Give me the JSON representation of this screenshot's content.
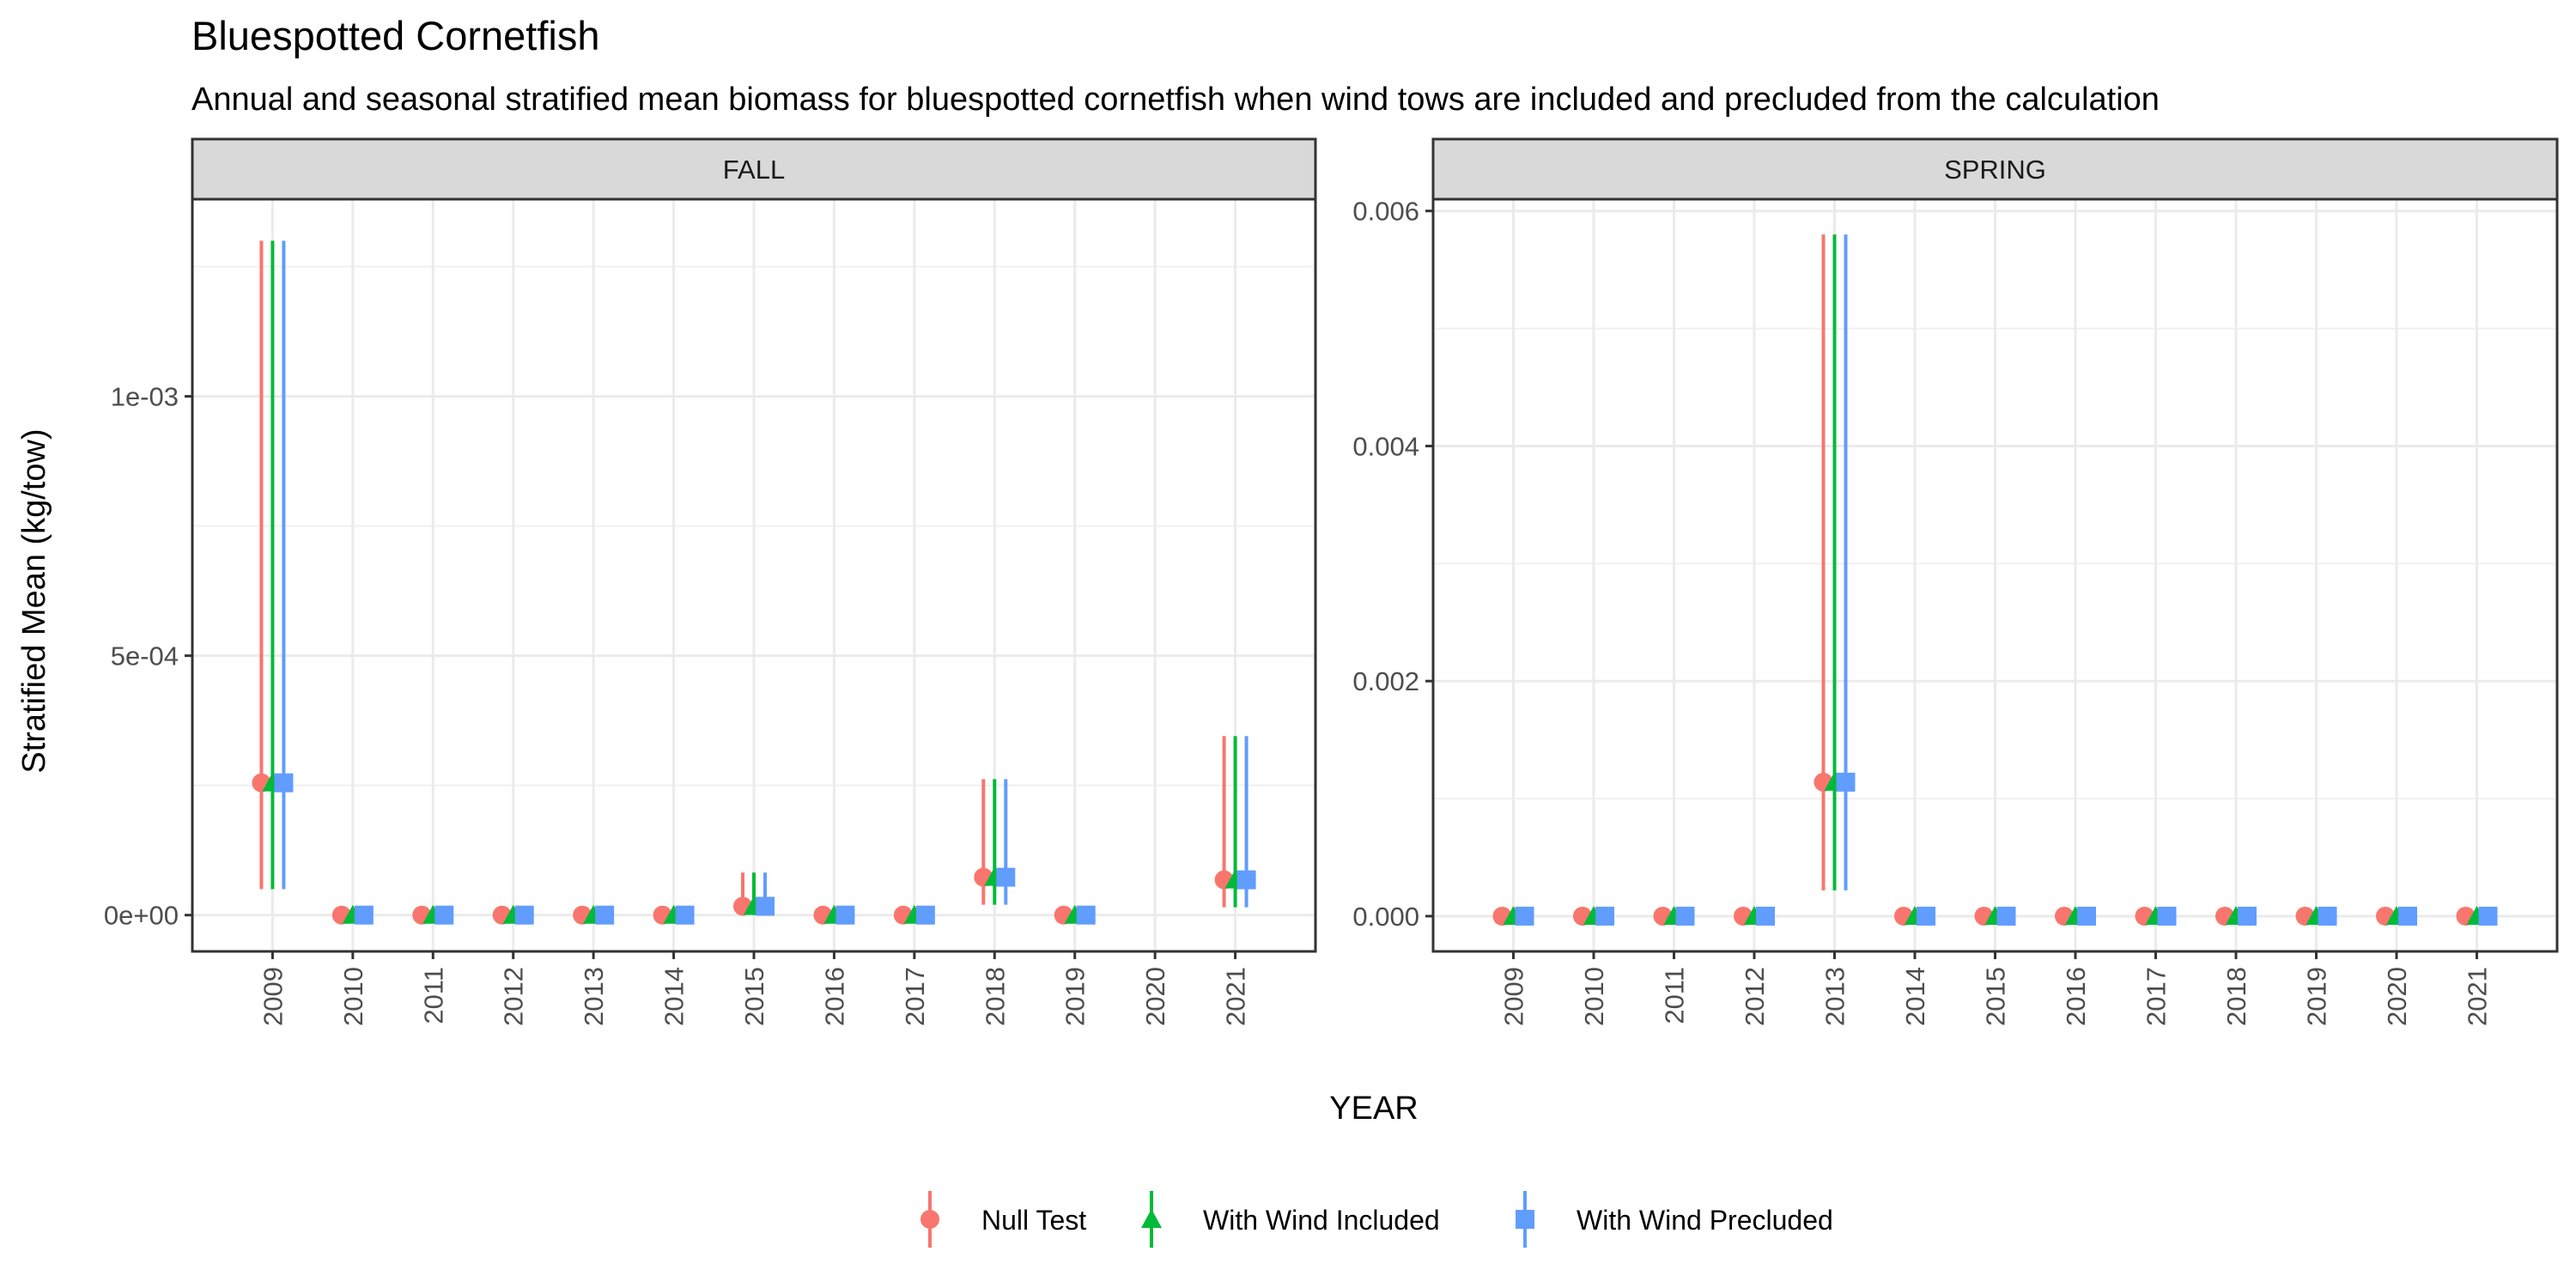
{
  "chart_data": {
    "type": "scatter",
    "title": "Bluespotted Cornetfish",
    "subtitle": "Annual and seasonal stratified mean biomass for bluespotted cornetfish when wind tows are included and precluded from the calculation",
    "xlabel": "YEAR",
    "ylabel": "Stratified Mean (kg/tow)",
    "legend_position": "bottom",
    "grid": true,
    "series": [
      {
        "name": "Null Test",
        "color": "#F8766D",
        "shape": "circle"
      },
      {
        "name": "With Wind Included",
        "color": "#00BA38",
        "shape": "triangle"
      },
      {
        "name": "With Wind Precluded",
        "color": "#619CFF",
        "shape": "square"
      }
    ],
    "panels": [
      {
        "name": "FALL",
        "years": [
          "2009",
          "2010",
          "2011",
          "2012",
          "2013",
          "2014",
          "2015",
          "2016",
          "2017",
          "2018",
          "2019",
          "2020",
          "2021"
        ],
        "ylim": [
          -7e-05,
          0.00138
        ],
        "yticks": [
          0,
          0.0005,
          0.001
        ],
        "ytick_labels": [
          "0e+00",
          "5e-04",
          "1e-03"
        ],
        "values": [
          {
            "year": "2009",
            "mean": 0.000255,
            "lower": 5e-05,
            "upper": 0.0013
          },
          {
            "year": "2010",
            "mean": 0.0,
            "lower": null,
            "upper": null
          },
          {
            "year": "2011",
            "mean": 0.0,
            "lower": null,
            "upper": null
          },
          {
            "year": "2012",
            "mean": 0.0,
            "lower": null,
            "upper": null
          },
          {
            "year": "2013",
            "mean": 0.0,
            "lower": null,
            "upper": null
          },
          {
            "year": "2014",
            "mean": 0.0,
            "lower": null,
            "upper": null
          },
          {
            "year": "2015",
            "mean": 1.7e-05,
            "lower": 0.0,
            "upper": 8.2e-05
          },
          {
            "year": "2016",
            "mean": 0.0,
            "lower": null,
            "upper": null
          },
          {
            "year": "2017",
            "mean": 0.0,
            "lower": null,
            "upper": null
          },
          {
            "year": "2018",
            "mean": 7.3e-05,
            "lower": 2e-05,
            "upper": 0.000262
          },
          {
            "year": "2019",
            "mean": 0.0,
            "lower": null,
            "upper": null
          },
          {
            "year": "2021",
            "mean": 6.8e-05,
            "lower": 1.5e-05,
            "upper": 0.000345
          }
        ]
      },
      {
        "name": "SPRING",
        "years": [
          "2009",
          "2010",
          "2011",
          "2012",
          "2013",
          "2014",
          "2015",
          "2016",
          "2017",
          "2018",
          "2019",
          "2020",
          "2021"
        ],
        "ylim": [
          -0.0003,
          0.0061
        ],
        "yticks": [
          0,
          0.002,
          0.004,
          0.006
        ],
        "ytick_labels": [
          "0.000",
          "0.002",
          "0.004",
          "0.006"
        ],
        "values": [
          {
            "year": "2009",
            "mean": 0.0,
            "lower": null,
            "upper": null
          },
          {
            "year": "2010",
            "mean": 0.0,
            "lower": null,
            "upper": null
          },
          {
            "year": "2011",
            "mean": 0.0,
            "lower": null,
            "upper": null
          },
          {
            "year": "2012",
            "mean": 0.0,
            "lower": null,
            "upper": null
          },
          {
            "year": "2013",
            "mean": 0.00114,
            "lower": 0.00022,
            "upper": 0.0058
          },
          {
            "year": "2014",
            "mean": 0.0,
            "lower": null,
            "upper": null
          },
          {
            "year": "2015",
            "mean": 0.0,
            "lower": null,
            "upper": null
          },
          {
            "year": "2016",
            "mean": 0.0,
            "lower": null,
            "upper": null
          },
          {
            "year": "2017",
            "mean": 0.0,
            "lower": null,
            "upper": null
          },
          {
            "year": "2018",
            "mean": 0.0,
            "lower": null,
            "upper": null
          },
          {
            "year": "2019",
            "mean": 0.0,
            "lower": null,
            "upper": null
          },
          {
            "year": "2020",
            "mean": 0.0,
            "lower": null,
            "upper": null
          },
          {
            "year": "2021",
            "mean": 0.0,
            "lower": null,
            "upper": null
          }
        ]
      }
    ]
  }
}
